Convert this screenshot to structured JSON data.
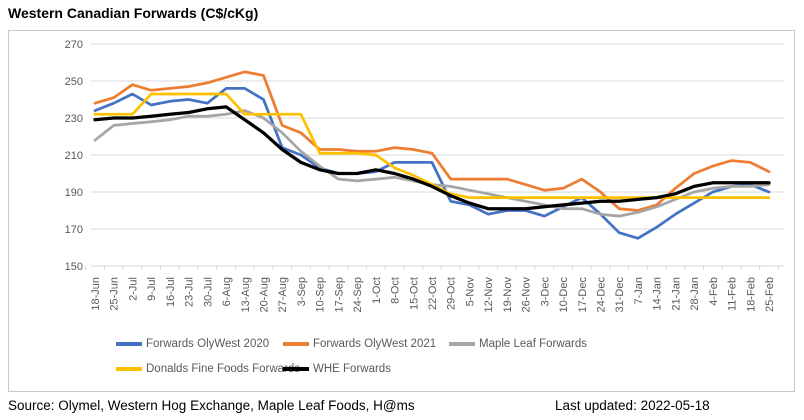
{
  "title": "Western Canadian Forwards (C$/cKg)",
  "footer": {
    "source": "Source: Olymel, Western Hog Exchange, Maple Leaf Foods, H@ms",
    "last_updated": "Last updated: 2022-05-18"
  },
  "colors": {
    "grid": "#d9d9d9",
    "axis_text": "#595959",
    "box_border": "#c9c9c9"
  },
  "chart_data": {
    "type": "line",
    "title": "Western Canadian Forwards (C$/cKg)",
    "xlabel": "",
    "ylabel": "",
    "ylim": [
      150,
      270
    ],
    "yticks": [
      270,
      250,
      230,
      210,
      190,
      170,
      150
    ],
    "grid": true,
    "legend_position": "bottom",
    "categories": [
      "18-Jun",
      "25-Jun",
      "2-Jul",
      "9-Jul",
      "16-Jul",
      "23-Jul",
      "30-Jul",
      "6-Aug",
      "13-Aug",
      "20-Aug",
      "27-Aug",
      "3-Sep",
      "10-Sep",
      "17-Sep",
      "24-Sep",
      "1-Oct",
      "8-Oct",
      "15-Oct",
      "22-Oct",
      "29-Oct",
      "5-Nov",
      "12-Nov",
      "19-Nov",
      "26-Nov",
      "3-Dec",
      "10-Dec",
      "17-Dec",
      "24-Dec",
      "31-Dec",
      "7-Jan",
      "14-Jan",
      "21-Jan",
      "28-Jan",
      "4-Feb",
      "11-Feb",
      "18-Feb",
      "25-Feb"
    ],
    "series": [
      {
        "name": "Forwards OlyWest 2020",
        "color": "#4472C4",
        "width": 2.75,
        "values": [
          234,
          238,
          243,
          237,
          239,
          240,
          238,
          246,
          246,
          240,
          214,
          210,
          203,
          200,
          200,
          201,
          206,
          206,
          206,
          185,
          183,
          178,
          180,
          180,
          177,
          182,
          187,
          178,
          168,
          165,
          171,
          178,
          184,
          190,
          193,
          194,
          190
        ]
      },
      {
        "name": "Forwards OlyWest 2021",
        "color": "#ED7D31",
        "width": 2.75,
        "values": [
          238,
          241,
          248,
          245,
          246,
          247,
          249,
          252,
          255,
          253,
          226,
          222,
          213,
          213,
          212,
          212,
          214,
          213,
          211,
          197,
          197,
          197,
          197,
          194,
          191,
          192,
          197,
          190,
          181,
          180,
          183,
          192,
          200,
          204,
          207,
          206,
          201
        ]
      },
      {
        "name": "Maple Leaf Forwards",
        "color": "#A5A5A5",
        "width": 2.75,
        "values": [
          218,
          226,
          227,
          228,
          229,
          231,
          231,
          232,
          234,
          230,
          222,
          212,
          204,
          197,
          196,
          197,
          198,
          196,
          194,
          193,
          191,
          189,
          187,
          185,
          183,
          181,
          181,
          178,
          177,
          179,
          182,
          186,
          190,
          192,
          193,
          193,
          194
        ]
      },
      {
        "name": "Donalds Fine Foods Forwards",
        "color": "#FFC000",
        "width": 2.75,
        "values": [
          232,
          232,
          232,
          243,
          243,
          243,
          243,
          243,
          232,
          232,
          232,
          232,
          211,
          211,
          211,
          210,
          203,
          199,
          194,
          189,
          187,
          187,
          187,
          187,
          187,
          187,
          187,
          187,
          187,
          187,
          187,
          187,
          187,
          187,
          187,
          187,
          187
        ]
      },
      {
        "name": "WHE Forwards",
        "color": "#000000",
        "width": 3.25,
        "values": [
          229,
          230,
          230,
          231,
          232,
          233,
          235,
          236,
          229,
          222,
          213,
          206,
          202,
          200,
          200,
          202,
          200,
          197,
          193,
          188,
          184,
          181,
          181,
          181,
          182,
          183,
          184,
          185,
          185,
          186,
          187,
          189,
          193,
          195,
          195,
          195,
          195
        ]
      }
    ],
    "legend_rows": [
      [
        0,
        1,
        2
      ],
      [
        3,
        4
      ]
    ]
  }
}
